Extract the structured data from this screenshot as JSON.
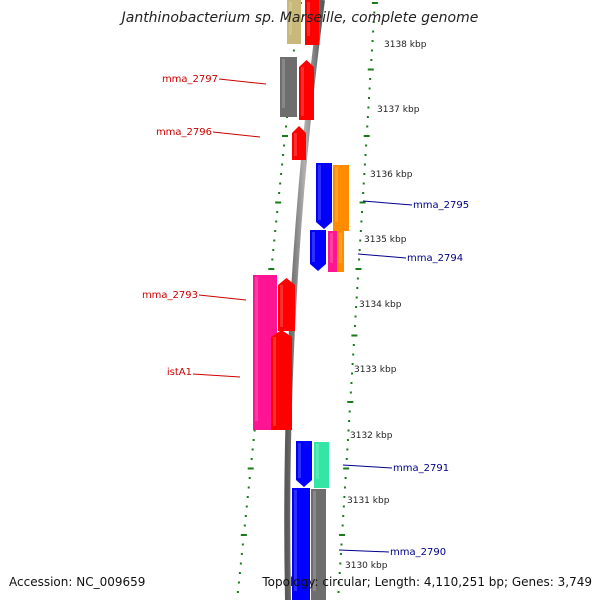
{
  "title": "Janthinobacterium sp. Marseille, complete genome",
  "footer": {
    "accession": "Accession: NC_009659",
    "topology": "Topology: circular; Length: 4,110,251 bp; Genes: 3,749"
  },
  "colors": {
    "backbone": "#8a8a8a",
    "tick": "#1a7a1a",
    "label_forward": "#cc0000",
    "label_reverse": "#00008b",
    "gene_red": "#ff0000",
    "gene_grey": "#6e6e6e",
    "gene_tan": "#c8b87a",
    "gene_pink": "#ff1493",
    "gene_blue": "#0000ff",
    "gene_orange": "#ff8c00",
    "gene_teal": "#33e6a6"
  },
  "scale": {
    "ticks": [
      "3138 kbp",
      "3137 kbp",
      "3136 kbp",
      "3135 kbp",
      "3134 kbp",
      "3133 kbp",
      "3132 kbp",
      "3131 kbp",
      "3130 kbp"
    ]
  },
  "gene_labels": {
    "left": [
      "mma_2797",
      "mma_2796",
      "mma_2793",
      "istA1"
    ],
    "right": [
      "mma_2795",
      "mma_2794",
      "mma_2791",
      "mma_2790"
    ]
  }
}
